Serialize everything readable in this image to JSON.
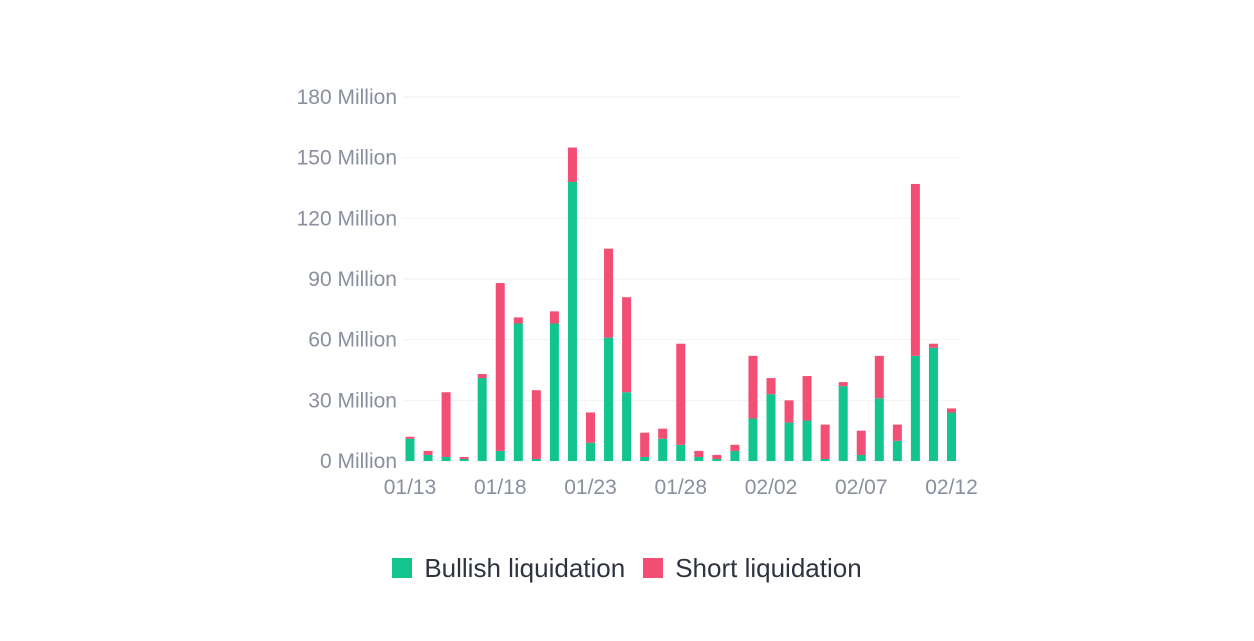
{
  "chart_data": {
    "type": "bar",
    "stacked": true,
    "colors": {
      "bullish": "#12c48e",
      "short": "#f34e73"
    },
    "y_ticks": [
      "180 Million",
      "150 Million",
      "120 Million",
      "90 Million",
      "60 Million",
      "30 Million",
      "0 Million"
    ],
    "ylim": [
      0,
      180
    ],
    "x_tick_labels": [
      "01/13",
      "01/18",
      "01/23",
      "01/28",
      "02/02",
      "02/07",
      "02/12"
    ],
    "categories": [
      "01/13",
      "01/14",
      "01/15",
      "01/16",
      "01/17",
      "01/18",
      "01/19",
      "01/20",
      "01/21",
      "01/22",
      "01/23",
      "01/24",
      "01/25",
      "01/26",
      "01/27",
      "01/28",
      "01/29",
      "01/30",
      "01/31",
      "02/01",
      "02/02",
      "02/03",
      "02/04",
      "02/05",
      "02/06",
      "02/07",
      "02/08",
      "02/09",
      "02/10",
      "02/11",
      "02/12"
    ],
    "series": [
      {
        "name": "Bullish liquidation",
        "values": [
          11,
          3,
          2,
          1,
          41,
          5,
          68,
          1,
          68,
          138,
          9,
          61,
          34,
          2,
          11,
          8,
          2,
          1,
          5,
          21,
          33,
          19,
          20,
          1,
          37,
          3,
          31,
          10,
          52,
          56,
          24
        ]
      },
      {
        "name": "Short liquidation",
        "values": [
          1,
          2,
          32,
          1,
          2,
          83,
          3,
          34,
          6,
          17,
          15,
          44,
          47,
          12,
          5,
          50,
          3,
          2,
          3,
          31,
          8,
          11,
          22,
          17,
          2,
          12,
          21,
          8,
          85,
          2,
          2
        ]
      }
    ],
    "grid": true,
    "legend_position": "bottom-center"
  },
  "legend": {
    "bullish_label": "Bullish liquidation",
    "short_label": "Short liquidation"
  }
}
